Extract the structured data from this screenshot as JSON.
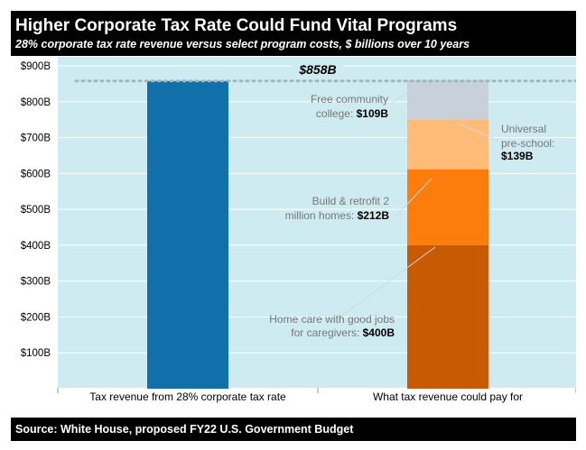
{
  "header": {
    "title": "Higher Corporate Tax Rate Could Fund Vital Programs",
    "subtitle": "28% corporate tax rate revenue versus select program costs, $ billions over 10 years"
  },
  "footer": {
    "source": "Source: White House, proposed FY22 U.S. Government Budget"
  },
  "chart_data": {
    "type": "bar",
    "stacked": true,
    "title": "Higher Corporate Tax Rate Could Fund Vital Programs",
    "subtitle": "28% corporate tax rate revenue versus select program costs, $ billions over 10 years",
    "xlabel": "",
    "ylabel": "",
    "ylim": [
      0,
      900
    ],
    "yticks": [
      100,
      200,
      300,
      400,
      500,
      600,
      700,
      800,
      900
    ],
    "ytick_labels": [
      "$100B",
      "$200B",
      "$300B",
      "$400B",
      "$500B",
      "$600B",
      "$700B",
      "$800B",
      "$900B"
    ],
    "grid": true,
    "reference_line": {
      "value": 858,
      "label": "$858B",
      "style": "dotted"
    },
    "categories": [
      "Tax revenue from 28% corporate tax rate",
      "What tax revenue could pay for"
    ],
    "series": [
      {
        "values": [
          858,
          0
        ],
        "color": "#1170aa"
      },
      {
        "name": "Home care with good jobs for caregivers:",
        "value_label": "$400B",
        "values": [
          0,
          400
        ],
        "color": "#c75a02"
      },
      {
        "name": "Build & retrofit 2 million homes:",
        "value_label": "$212B",
        "values": [
          0,
          212
        ],
        "color": "#fc7d0b"
      },
      {
        "name": "Universal pre-school:",
        "value_label": "$139B",
        "values": [
          0,
          139
        ],
        "color": "#ffbc79"
      },
      {
        "name": "Free community college:",
        "value_label": "$109B",
        "values": [
          0,
          109
        ],
        "color": "#c8d0d9"
      }
    ],
    "colors": {
      "plot_background": "#cdebf0",
      "gridline": "#ffffff",
      "reference_line": "#9fb8be"
    }
  }
}
